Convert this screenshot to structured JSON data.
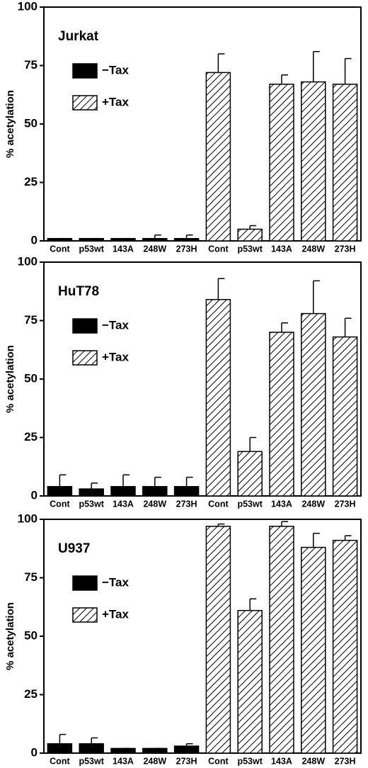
{
  "chart_data": [
    {
      "type": "bar",
      "title": "Jurkat",
      "ylabel": "% acetylation",
      "categories": [
        "Cont",
        "p53wt",
        "143A",
        "248W",
        "273H"
      ],
      "series": [
        {
          "name": "−Tax",
          "color": "#000000",
          "values": [
            1,
            1,
            1,
            1,
            1
          ],
          "errors": [
            0,
            0,
            0,
            1.5,
            1.5
          ]
        },
        {
          "name": "+Tax",
          "color": "#000000",
          "pattern": "hatch",
          "values": [
            72,
            5,
            67,
            68,
            67
          ],
          "errors": [
            8,
            1.5,
            4,
            13,
            11
          ]
        }
      ],
      "ylim": [
        0,
        100
      ],
      "yticks": [
        0,
        25,
        50,
        75,
        100
      ]
    },
    {
      "type": "bar",
      "title": "HuT78",
      "ylabel": "% acetylation",
      "categories": [
        "Cont",
        "p53wt",
        "143A",
        "248W",
        "273H"
      ],
      "series": [
        {
          "name": "−Tax",
          "color": "#000000",
          "values": [
            4,
            3,
            4,
            4,
            4
          ],
          "errors": [
            5,
            2.5,
            5,
            4,
            4
          ]
        },
        {
          "name": "+Tax",
          "color": "#000000",
          "pattern": "hatch",
          "values": [
            84,
            19,
            70,
            78,
            68
          ],
          "errors": [
            9,
            6,
            4,
            14,
            8
          ]
        }
      ],
      "ylim": [
        0,
        100
      ],
      "yticks": [
        0,
        25,
        50,
        75,
        100
      ]
    },
    {
      "type": "bar",
      "title": "U937",
      "ylabel": "% acetylation",
      "categories": [
        "Cont",
        "p53wt",
        "143A",
        "248W",
        "273H"
      ],
      "series": [
        {
          "name": "−Tax",
          "color": "#000000",
          "values": [
            4,
            4,
            2,
            2,
            3
          ],
          "errors": [
            4,
            2.5,
            0,
            0,
            1
          ]
        },
        {
          "name": "+Tax",
          "color": "#000000",
          "pattern": "hatch",
          "values": [
            97,
            61,
            97,
            88,
            91
          ],
          "errors": [
            1,
            5,
            2,
            6,
            2
          ]
        }
      ],
      "ylim": [
        0,
        100
      ],
      "yticks": [
        0,
        25,
        50,
        75,
        100
      ]
    }
  ]
}
